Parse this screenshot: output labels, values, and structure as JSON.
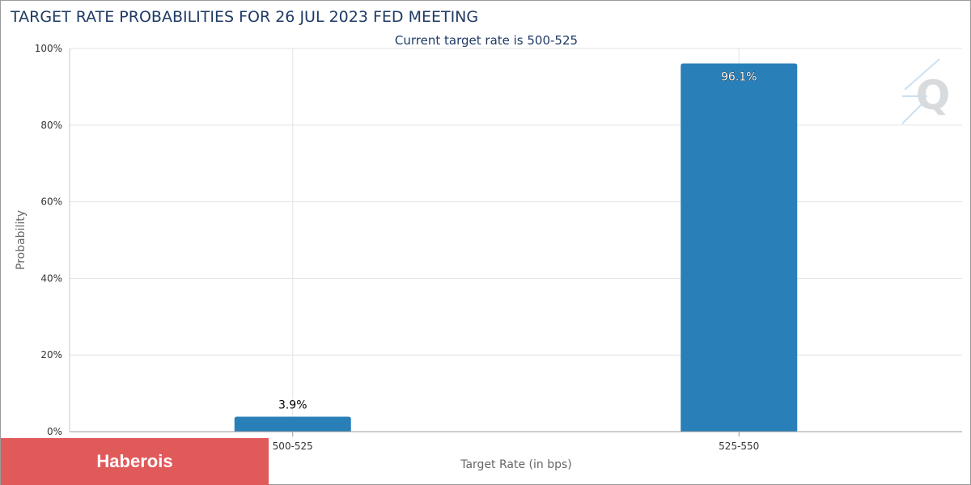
{
  "chart_data": {
    "type": "bar",
    "title": "TARGET RATE PROBABILITIES FOR 26 JUL 2023 FED MEETING",
    "subtitle": "Current target rate is 500-525",
    "xlabel": "Target Rate (in bps)",
    "ylabel": "Probability",
    "categories": [
      "500-525",
      "525-550"
    ],
    "values": [
      3.9,
      96.1
    ],
    "data_labels": [
      "3.9%",
      "96.1%"
    ],
    "ylim": [
      0,
      100
    ],
    "yticks": [
      0,
      20,
      40,
      60,
      80,
      100
    ],
    "ytick_labels": [
      "0%",
      "20%",
      "40%",
      "60%",
      "80%",
      "100%"
    ],
    "grid": true,
    "bar_color": "#2980b9"
  },
  "banner": {
    "label": "Haberois",
    "color": "#e05a5a"
  },
  "watermark": {
    "glyph": "Q",
    "icon": "cme-fedwatch-logo-icon"
  }
}
